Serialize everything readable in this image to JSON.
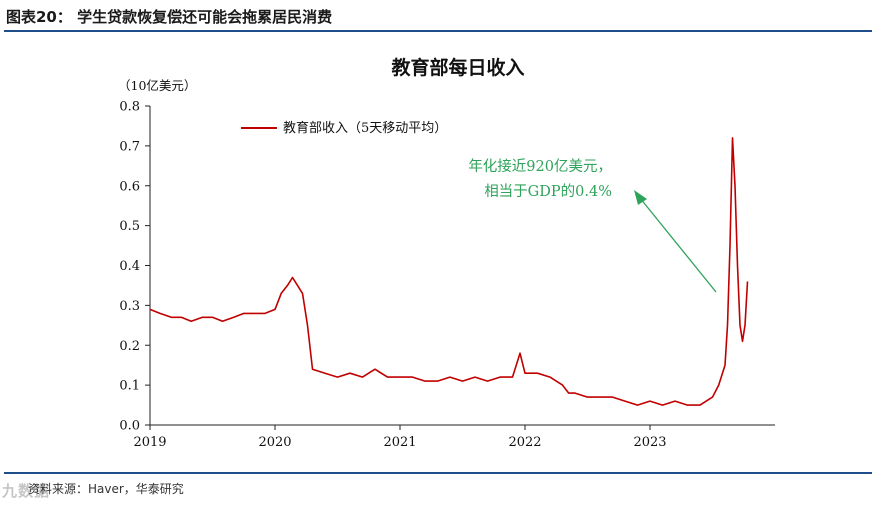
{
  "header": {
    "figure_title": "图表20： 学生贷款恢复偿还可能会拖累居民消费"
  },
  "footer": {
    "source": "资料来源：Haver，华泰研究",
    "watermark": "九数据"
  },
  "colors": {
    "line": "#c00000",
    "annotation": "#2ea35a",
    "rule": "#1f4f8a"
  },
  "chart_data": {
    "type": "line",
    "title": "教育部每日收入",
    "unit_label": "（10亿美元）",
    "legend": "教育部收入（5天移动平均）",
    "legend_position": "top-left",
    "grid": false,
    "ylim": [
      0,
      0.8
    ],
    "yticks": [
      "0.0",
      "0.1",
      "0.2",
      "0.3",
      "0.4",
      "0.5",
      "0.6",
      "0.7",
      "0.8"
    ],
    "xlim": [
      2019,
      2024
    ],
    "xticks": [
      "2019",
      "2020",
      "2021",
      "2022",
      "2023"
    ],
    "annotation": [
      "年化接近920亿美元，",
      "相当于GDP的0.4%"
    ],
    "series": [
      {
        "name": "教育部收入（5天移动平均）",
        "x": [
          2019.0,
          2019.08,
          2019.17,
          2019.25,
          2019.33,
          2019.42,
          2019.5,
          2019.58,
          2019.67,
          2019.75,
          2019.83,
          2019.92,
          2020.0,
          2020.05,
          2020.1,
          2020.14,
          2020.18,
          2020.22,
          2020.26,
          2020.3,
          2020.4,
          2020.5,
          2020.6,
          2020.7,
          2020.8,
          2020.9,
          2021.0,
          2021.1,
          2021.2,
          2021.3,
          2021.4,
          2021.5,
          2021.6,
          2021.7,
          2021.8,
          2021.9,
          2021.96,
          2022.0,
          2022.1,
          2022.2,
          2022.3,
          2022.35,
          2022.4,
          2022.5,
          2022.6,
          2022.7,
          2022.8,
          2022.9,
          2023.0,
          2023.1,
          2023.2,
          2023.3,
          2023.4,
          2023.45,
          2023.5,
          2023.55,
          2023.6,
          2023.62,
          2023.64,
          2023.66,
          2023.68,
          2023.7,
          2023.72,
          2023.74,
          2023.76,
          2023.78
        ],
        "y": [
          0.29,
          0.28,
          0.27,
          0.27,
          0.26,
          0.27,
          0.27,
          0.26,
          0.27,
          0.28,
          0.28,
          0.28,
          0.29,
          0.33,
          0.35,
          0.37,
          0.35,
          0.33,
          0.25,
          0.14,
          0.13,
          0.12,
          0.13,
          0.12,
          0.14,
          0.12,
          0.12,
          0.12,
          0.11,
          0.11,
          0.12,
          0.11,
          0.12,
          0.11,
          0.12,
          0.12,
          0.18,
          0.13,
          0.13,
          0.12,
          0.1,
          0.08,
          0.08,
          0.07,
          0.07,
          0.07,
          0.06,
          0.05,
          0.06,
          0.05,
          0.06,
          0.05,
          0.05,
          0.06,
          0.07,
          0.1,
          0.15,
          0.25,
          0.45,
          0.72,
          0.6,
          0.4,
          0.25,
          0.21,
          0.25,
          0.36
        ]
      }
    ]
  }
}
